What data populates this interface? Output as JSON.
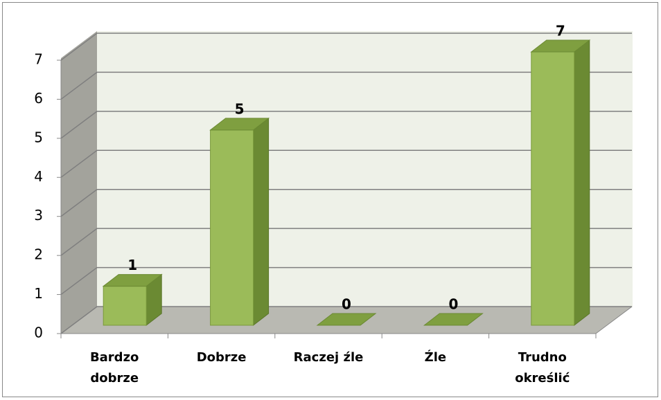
{
  "chart_data": {
    "type": "bar3d",
    "categories": [
      "Bardzo dobrze",
      "Dobrze",
      "Raczej źle",
      "Źle",
      "Trudno określić"
    ],
    "values": [
      1,
      5,
      0,
      0,
      7
    ],
    "color": "#9bbb59",
    "ylim": [
      0,
      7
    ],
    "yticks": [
      0,
      1,
      2,
      3,
      4,
      5,
      6,
      7
    ],
    "grid": true
  }
}
